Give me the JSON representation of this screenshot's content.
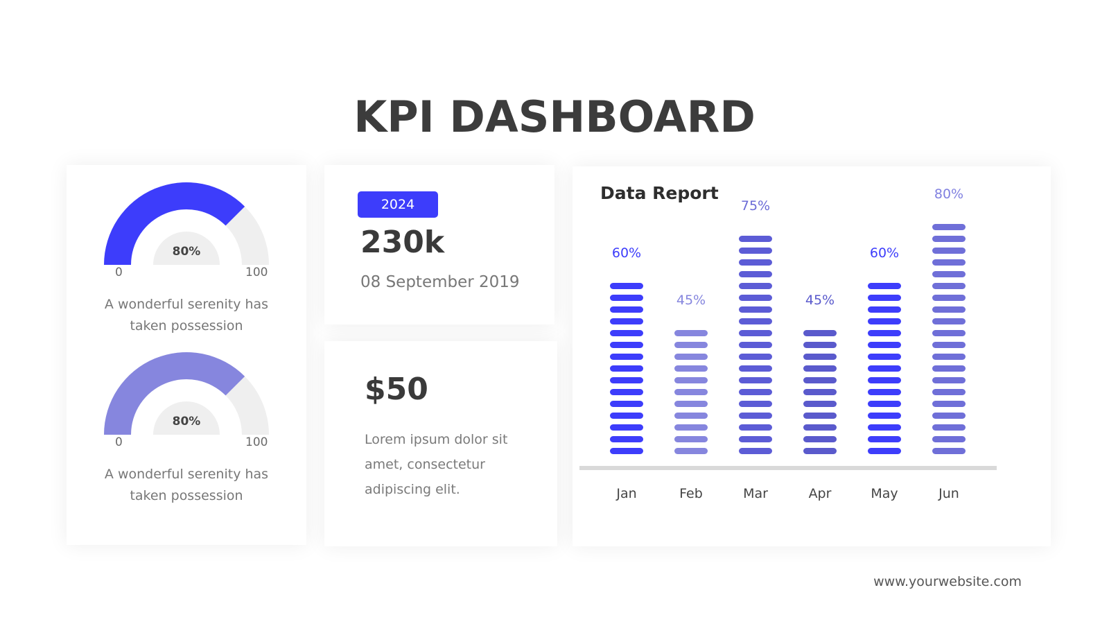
{
  "title": "KPI DASHBOARD",
  "gauges": [
    {
      "value_label": "80%",
      "value": 80,
      "min_label": "0",
      "max_label": "100",
      "caption_line1": "A wonderful serenity has",
      "caption_line2": "taken possession",
      "color": "#3d3dfb"
    },
    {
      "value_label": "80%",
      "value": 80,
      "min_label": "0",
      "max_label": "100",
      "caption_line1": "A wonderful serenity has",
      "caption_line2": "taken possession",
      "color": "#8686de"
    }
  ],
  "stat_card": {
    "badge": "2024",
    "value": "230k",
    "date": "08 September 2019"
  },
  "price_card": {
    "value": "$50",
    "text": "Lorem ipsum dolor sit amet, consectetur adipiscing elit."
  },
  "report": {
    "title": "Data Report"
  },
  "footer": "www.yourwebsite.com",
  "colors": {
    "accent": "#3d3dfb",
    "accent_light": "#8686de",
    "track": "#efefef"
  },
  "chart_data": {
    "type": "bar",
    "title": "Data Report",
    "categories": [
      "Jan",
      "Feb",
      "Mar",
      "Apr",
      "May",
      "Jun"
    ],
    "values": [
      60,
      45,
      75,
      45,
      60,
      80
    ],
    "value_labels": [
      "60%",
      "45%",
      "75%",
      "45%",
      "60%",
      "80%"
    ],
    "bar_colors": [
      "#3d3dfb",
      "#8686de",
      "#5c5cd6",
      "#5a5acc",
      "#3d3dfb",
      "#6f6fd8"
    ],
    "label_colors": [
      "#3d3dfb",
      "#8686de",
      "#6a6ad6",
      "#5a5acc",
      "#3d3dfb",
      "#8080e0"
    ],
    "ylim": [
      0,
      100
    ],
    "grid": false
  }
}
